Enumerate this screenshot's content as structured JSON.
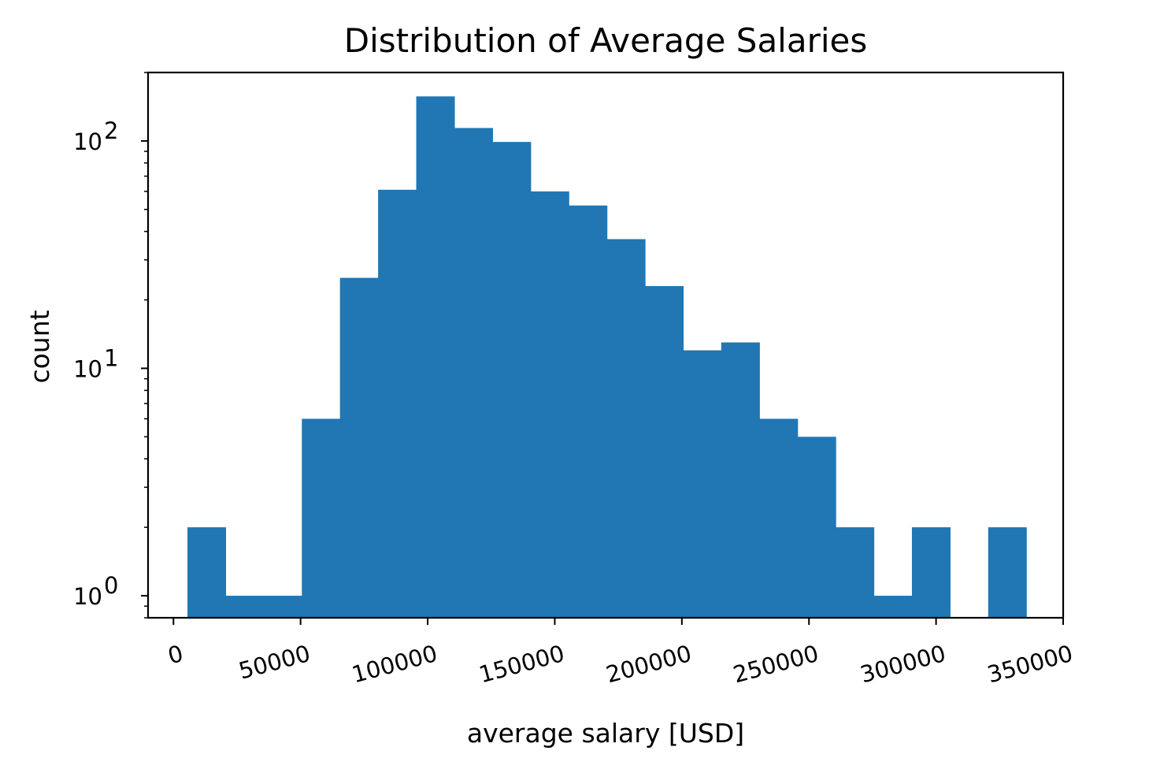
{
  "chart_data": {
    "type": "bar",
    "title": "Distribution of Average Salaries",
    "xlabel": "average salary [USD]",
    "ylabel": "count",
    "y_scale": "log",
    "grid": false,
    "legend": "none",
    "color": "#2077b4",
    "xlim": [
      -10000,
      350000
    ],
    "ylim": [
      0.8,
      200
    ],
    "x_ticks": [
      0,
      50000,
      100000,
      150000,
      200000,
      250000,
      300000,
      350000
    ],
    "x_tick_labels": [
      "0",
      "50000",
      "100000",
      "150000",
      "200000",
      "250000",
      "300000",
      "350000"
    ],
    "x_tick_rotation": "15°",
    "y_ticks": [
      1,
      10,
      100
    ],
    "y_tick_labels": [
      {
        "base": "10",
        "exp": "0"
      },
      {
        "base": "10",
        "exp": "1"
      },
      {
        "base": "10",
        "exp": "2"
      }
    ],
    "bins": [
      {
        "start": 5500,
        "end": 20500,
        "count": 2
      },
      {
        "start": 20500,
        "end": 35500,
        "count": 1
      },
      {
        "start": 35500,
        "end": 50500,
        "count": 1
      },
      {
        "start": 50500,
        "end": 65500,
        "count": 6
      },
      {
        "start": 65500,
        "end": 80500,
        "count": 25
      },
      {
        "start": 80500,
        "end": 95500,
        "count": 61
      },
      {
        "start": 95500,
        "end": 110500,
        "count": 157
      },
      {
        "start": 110500,
        "end": 125500,
        "count": 114
      },
      {
        "start": 125500,
        "end": 140500,
        "count": 99
      },
      {
        "start": 140500,
        "end": 155500,
        "count": 60
      },
      {
        "start": 155500,
        "end": 170500,
        "count": 52
      },
      {
        "start": 170500,
        "end": 185500,
        "count": 37
      },
      {
        "start": 185500,
        "end": 200500,
        "count": 23
      },
      {
        "start": 200500,
        "end": 215500,
        "count": 12
      },
      {
        "start": 215500,
        "end": 230500,
        "count": 13
      },
      {
        "start": 230500,
        "end": 245500,
        "count": 6
      },
      {
        "start": 245500,
        "end": 260500,
        "count": 5
      },
      {
        "start": 260500,
        "end": 275500,
        "count": 2
      },
      {
        "start": 275500,
        "end": 290500,
        "count": 1
      },
      {
        "start": 290500,
        "end": 305500,
        "count": 2
      },
      {
        "start": 305500,
        "end": 320500,
        "count": 0
      },
      {
        "start": 320500,
        "end": 335500,
        "count": 2
      }
    ]
  }
}
